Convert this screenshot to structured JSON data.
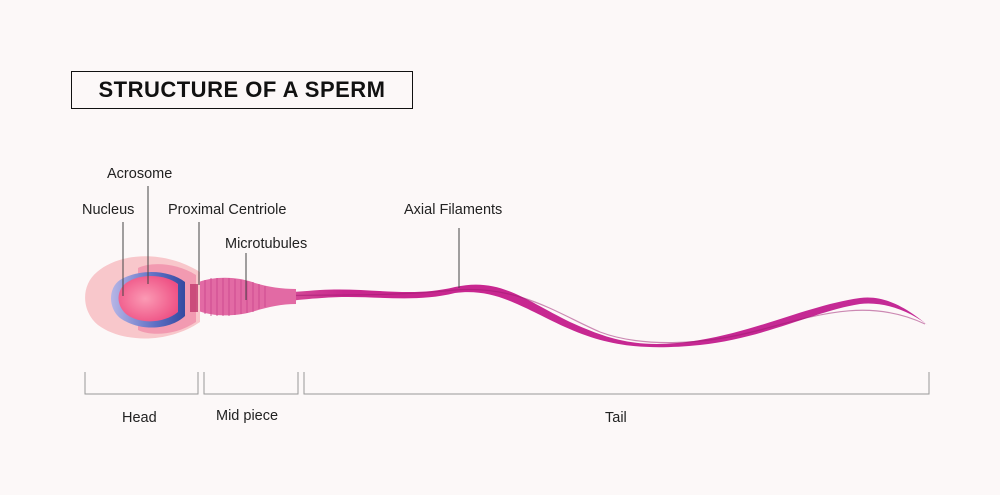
{
  "title": "STRUCTURE OF A SPERM",
  "labels": {
    "acrosome": "Acrosome",
    "nucleus": "Nucleus",
    "proximal_centriole": "Proximal Centriole",
    "microtubules": "Microtubules",
    "axial_filaments": "Axial Filaments"
  },
  "segments": {
    "head": "Head",
    "mid_piece": "Mid piece",
    "tail": "Tail"
  },
  "stock_id": "424011688",
  "colors": {
    "background": "#fcf8f8",
    "head_outer": "#f8c7cb",
    "nucleus": "#f2608a",
    "acrosome_edge": "#3c54a8",
    "body": "#c9268e",
    "body_light": "#e25eb5",
    "bracket": "#999999"
  }
}
